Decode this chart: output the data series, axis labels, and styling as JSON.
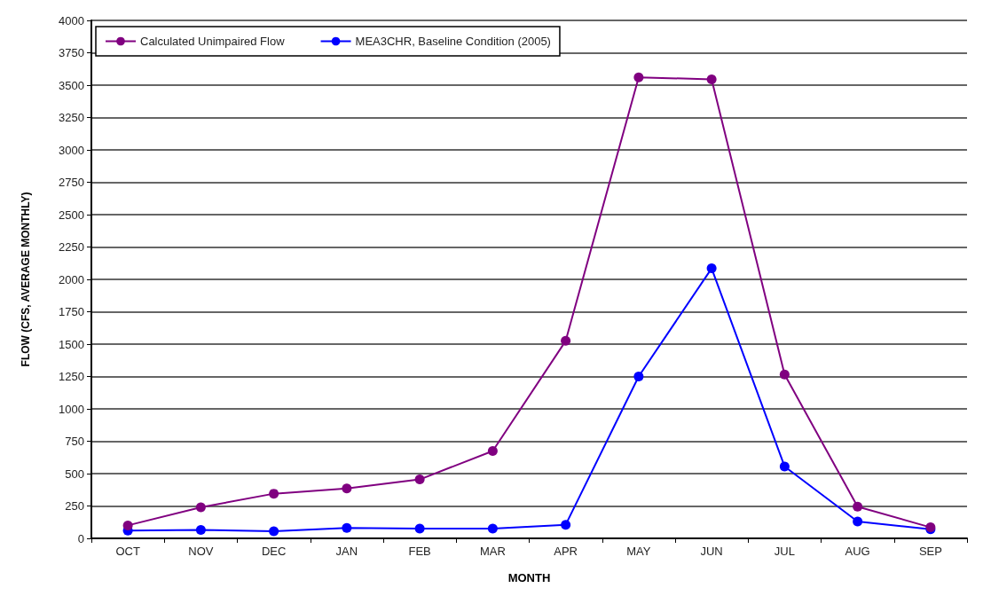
{
  "chart_data": {
    "type": "line",
    "xlabel": "MONTH",
    "ylabel": "FLOW (CFS, AVERAGE MONTHLY)",
    "categories": [
      "OCT",
      "NOV",
      "DEC",
      "JAN",
      "FEB",
      "MAR",
      "APR",
      "MAY",
      "JUN",
      "JUL",
      "AUG",
      "SEP"
    ],
    "series": [
      {
        "name": "Calculated Unimpaired Flow",
        "color": "#800080",
        "values": [
          100,
          240,
          345,
          385,
          455,
          675,
          1525,
          3560,
          3545,
          1265,
          245,
          85
        ]
      },
      {
        "name": "MEA3CHR, Baseline Condition (2005)",
        "color": "#0000ff",
        "values": [
          60,
          65,
          55,
          80,
          75,
          75,
          105,
          1250,
          2085,
          555,
          130,
          70
        ]
      }
    ],
    "ylim": [
      0,
      4000
    ],
    "yticks": [
      0,
      250,
      500,
      750,
      1000,
      1250,
      1500,
      1750,
      2000,
      2250,
      2500,
      2750,
      3000,
      3250,
      3500,
      3750,
      4000
    ],
    "grid": "y",
    "legend": "top left",
    "marker": "circle",
    "line_style": "solid"
  }
}
